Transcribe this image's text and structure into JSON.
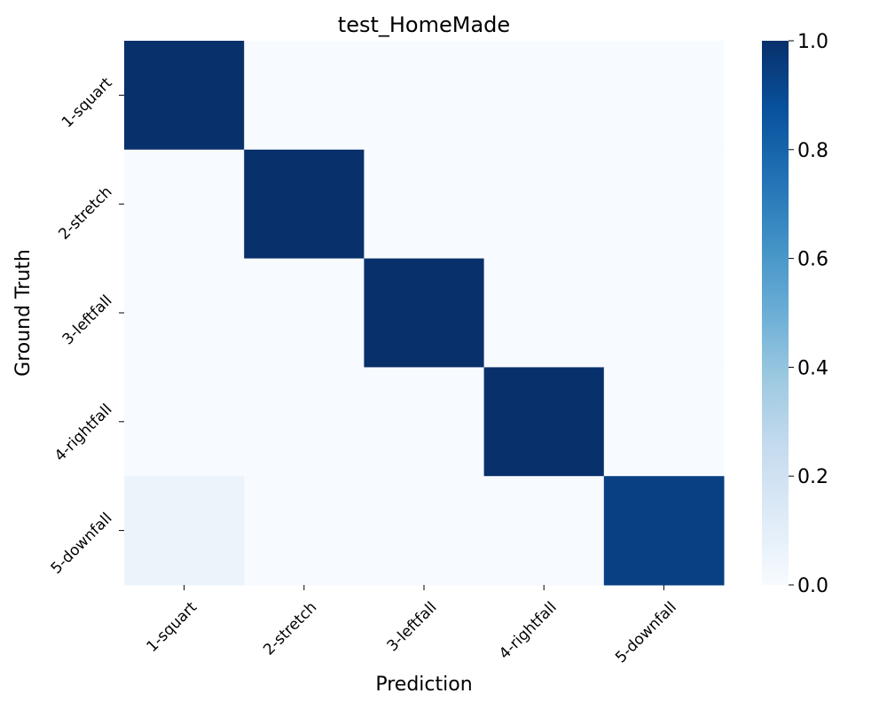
{
  "chart_data": {
    "type": "heatmap",
    "title": "test_HomeMade",
    "xlabel": "Prediction",
    "ylabel": "Ground Truth",
    "x_categories": [
      "1-squart",
      "2-stretch",
      "3-leftfall",
      "4-rightfall",
      "5-downfall"
    ],
    "y_categories": [
      "1-squart",
      "2-stretch",
      "3-leftfall",
      "4-rightfall",
      "5-downfall"
    ],
    "values": [
      [
        1.0,
        0.0,
        0.0,
        0.0,
        0.0
      ],
      [
        0.0,
        1.0,
        0.0,
        0.0,
        0.0
      ],
      [
        0.0,
        0.0,
        1.0,
        0.0,
        0.0
      ],
      [
        0.0,
        0.0,
        0.0,
        1.0,
        0.0
      ],
      [
        0.06,
        0.0,
        0.0,
        0.0,
        0.94
      ]
    ],
    "colorbar": {
      "range": [
        0.0,
        1.0
      ],
      "ticks": [
        "0.0",
        "0.2",
        "0.4",
        "0.6",
        "0.8",
        "1.0"
      ],
      "colormap": "Blues"
    },
    "colors": {
      "low": "#f7fbff",
      "high": "#08306b"
    }
  }
}
